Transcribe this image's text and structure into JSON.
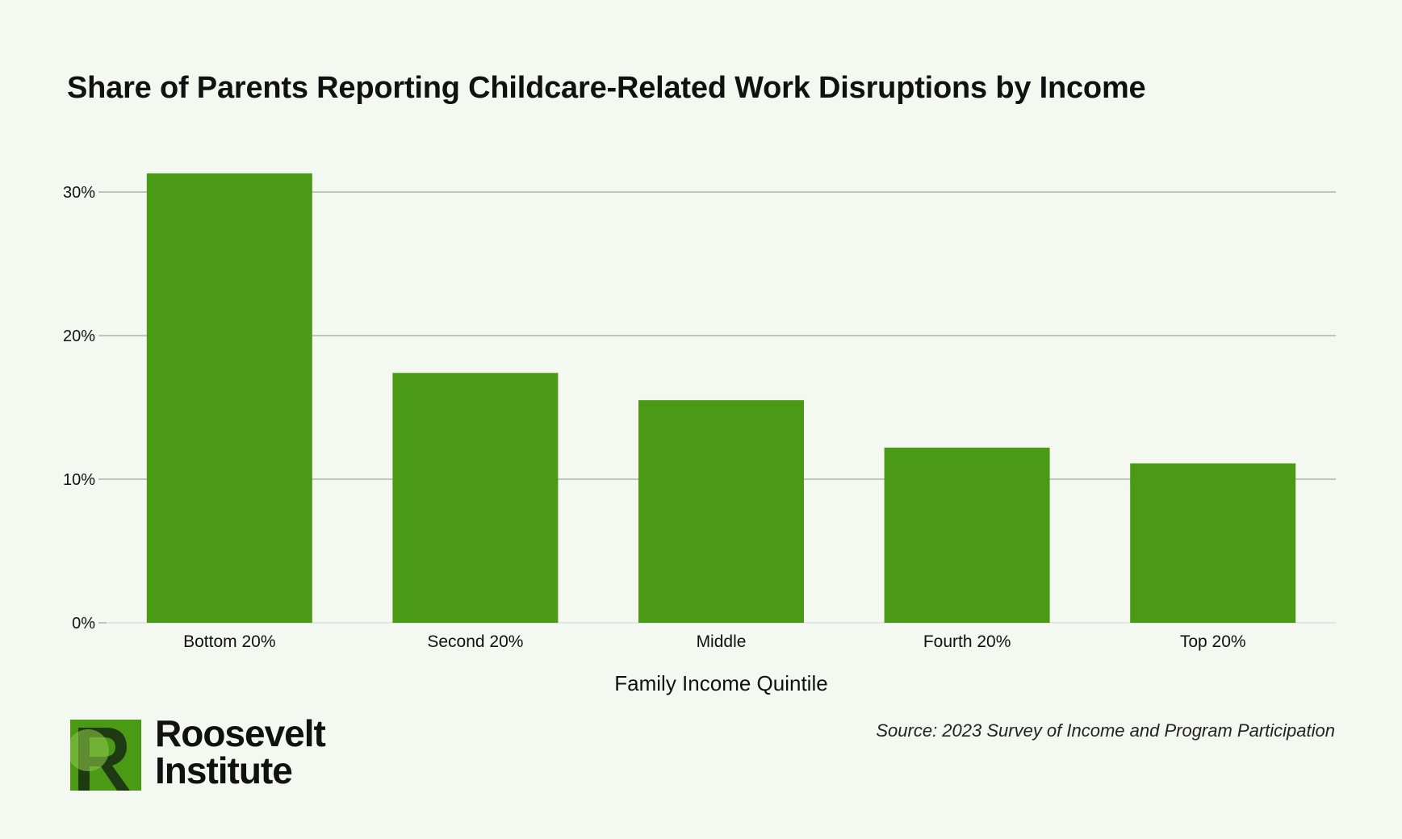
{
  "colors": {
    "background": "#f3f8f1",
    "bar": "#4a9a16",
    "grid": "#8a9590",
    "text": "#111111",
    "logo_green": "#4a9a16",
    "logo_light_green": "#8bc34a",
    "logo_dark": "#1e3a12"
  },
  "logo": {
    "line1": "Roosevelt",
    "line2": "Institute",
    "icon": "roosevelt-r-logo"
  },
  "source": "Source: 2023 Survey of Income and Program Participation",
  "chart_data": {
    "type": "bar",
    "title": "Share of Parents Reporting Childcare-Related Work Disruptions by Income",
    "xlabel": "Family Income Quintile",
    "ylabel": "",
    "categories": [
      "Bottom 20%",
      "Second 20%",
      "Middle",
      "Fourth 20%",
      "Top 20%"
    ],
    "values": [
      31.3,
      17.4,
      15.5,
      12.2,
      11.1
    ],
    "ylim": [
      0,
      30
    ],
    "yticks": [
      0,
      10,
      20,
      30
    ],
    "ytick_labels": [
      "0%",
      "10%",
      "20%",
      "30%"
    ],
    "grid": true,
    "legend": "none"
  }
}
